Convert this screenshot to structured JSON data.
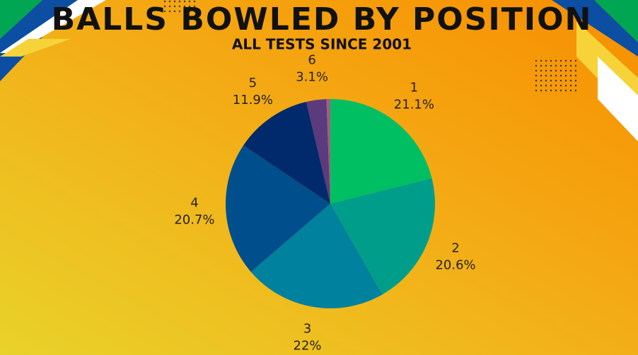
{
  "chart_data": {
    "type": "pie",
    "title": "BALLS BOWLED BY POSITION",
    "subtitle": "ALL TESTS SINCE 2001",
    "categories": [
      "1",
      "2",
      "3",
      "4",
      "5",
      "6",
      null
    ],
    "values": [
      21.1,
      20.6,
      22,
      20.7,
      11.9,
      3.1,
      0.6
    ],
    "value_labels": [
      "21.1%",
      "20.6%",
      "22%",
      "20.7%",
      "11.9%",
      "3.1%",
      null
    ],
    "colors": [
      "#00bf63",
      "#009e8a",
      "#00819e",
      "#004f8c",
      "#002a6b",
      "#5b3a7e",
      "#a0607e"
    ]
  }
}
